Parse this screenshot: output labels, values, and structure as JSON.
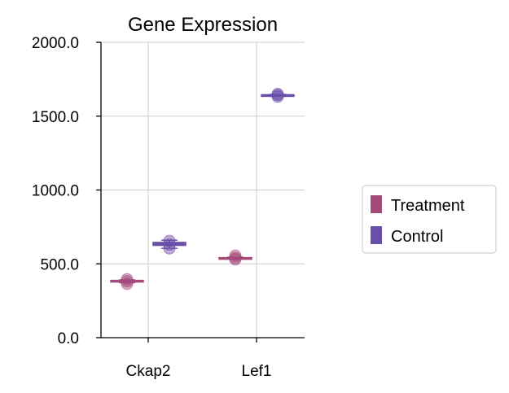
{
  "chart_data": {
    "type": "box",
    "title": "Gene Expression",
    "xlabel": "",
    "ylabel": "",
    "categories": [
      "Ckap2",
      "Lef1"
    ],
    "ylim": [
      0,
      2000
    ],
    "yticks": [
      "0.0",
      "500.0",
      "1000.0",
      "1500.0",
      "2000.0"
    ],
    "ytick_values": [
      0,
      500,
      1000,
      1500,
      2000
    ],
    "grid": true,
    "legend_position": "right",
    "series": [
      {
        "name": "Treatment",
        "color": "#A34A7A",
        "boxes": [
          {
            "category": "Ckap2",
            "q1": 378,
            "median": 383,
            "q3": 388,
            "whisker_low": 372,
            "whisker_high": 392,
            "points": [
              395,
              382,
              365
            ]
          },
          {
            "category": "Lef1",
            "q1": 535,
            "median": 538,
            "q3": 542,
            "whisker_low": 532,
            "whisker_high": 546,
            "points": [
              555,
              540,
              530
            ]
          }
        ]
      },
      {
        "name": "Control",
        "color": "#6A4FA8",
        "boxes": [
          {
            "category": "Ckap2",
            "q1": 625,
            "median": 635,
            "q3": 645,
            "whisker_low": 605,
            "whisker_high": 660,
            "points": [
              655,
              630,
              605
            ]
          },
          {
            "category": "Lef1",
            "q1": 1638,
            "median": 1641,
            "q3": 1645,
            "whisker_low": 1634,
            "whisker_high": 1648,
            "points": [
              1650,
              1642,
              1632
            ]
          }
        ]
      }
    ]
  }
}
